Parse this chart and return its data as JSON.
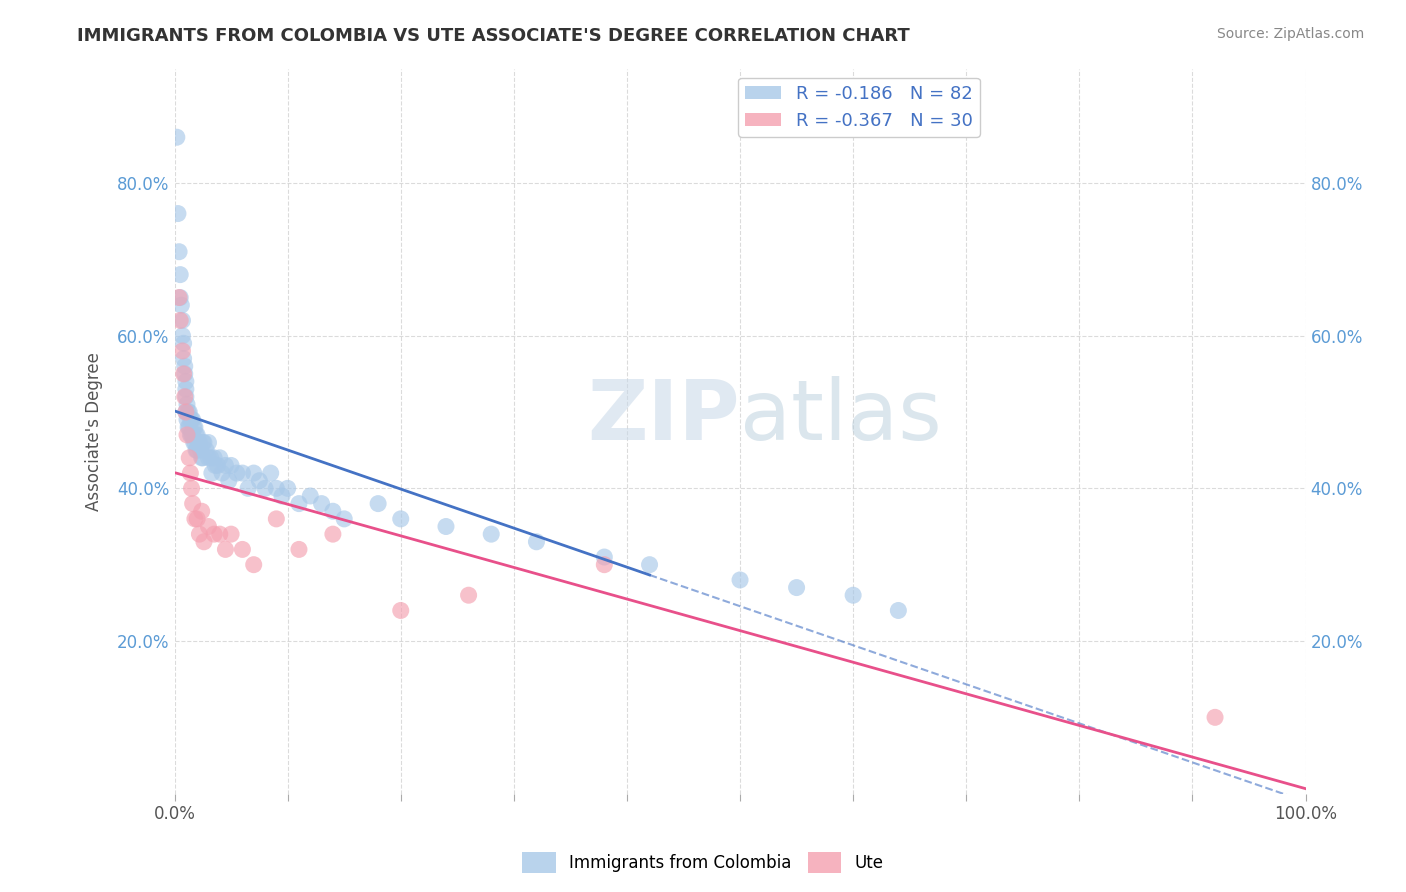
{
  "title": "IMMIGRANTS FROM COLOMBIA VS UTE ASSOCIATE'S DEGREE CORRELATION CHART",
  "source_text": "Source: ZipAtlas.com",
  "watermark_zip": "ZIP",
  "watermark_atlas": "atlas",
  "xlabel": "",
  "ylabel": "Associate's Degree",
  "legend_label_1": "Immigrants from Colombia",
  "legend_label_2": "Ute",
  "r1": -0.186,
  "n1": 82,
  "r2": -0.367,
  "n2": 30,
  "xlim": [
    0.0,
    1.0
  ],
  "ylim": [
    0.0,
    0.95
  ],
  "color1": "#a8c8e8",
  "color2": "#f4a0b0",
  "trendline1_color": "#4472c4",
  "trendline2_color": "#e8508a",
  "trendline1_end": 0.42,
  "background_color": "#ffffff",
  "grid_color": "#cccccc",
  "colombia_x": [
    0.002,
    0.003,
    0.004,
    0.005,
    0.005,
    0.006,
    0.007,
    0.007,
    0.008,
    0.008,
    0.009,
    0.009,
    0.01,
    0.01,
    0.01,
    0.01,
    0.011,
    0.011,
    0.012,
    0.012,
    0.013,
    0.013,
    0.014,
    0.014,
    0.015,
    0.015,
    0.016,
    0.016,
    0.017,
    0.017,
    0.018,
    0.018,
    0.019,
    0.019,
    0.02,
    0.02,
    0.021,
    0.022,
    0.023,
    0.024,
    0.025,
    0.025,
    0.026,
    0.028,
    0.03,
    0.03,
    0.032,
    0.033,
    0.035,
    0.036,
    0.038,
    0.04,
    0.042,
    0.045,
    0.048,
    0.05,
    0.055,
    0.06,
    0.065,
    0.07,
    0.075,
    0.08,
    0.085,
    0.09,
    0.095,
    0.1,
    0.11,
    0.12,
    0.13,
    0.14,
    0.15,
    0.18,
    0.2,
    0.24,
    0.28,
    0.32,
    0.38,
    0.42,
    0.5,
    0.55,
    0.6,
    0.64
  ],
  "colombia_y": [
    0.86,
    0.76,
    0.71,
    0.68,
    0.65,
    0.64,
    0.62,
    0.6,
    0.59,
    0.57,
    0.56,
    0.55,
    0.54,
    0.53,
    0.52,
    0.5,
    0.51,
    0.49,
    0.5,
    0.48,
    0.5,
    0.48,
    0.49,
    0.47,
    0.49,
    0.47,
    0.49,
    0.47,
    0.48,
    0.46,
    0.48,
    0.46,
    0.47,
    0.45,
    0.47,
    0.45,
    0.46,
    0.46,
    0.45,
    0.44,
    0.46,
    0.44,
    0.46,
    0.45,
    0.46,
    0.44,
    0.44,
    0.42,
    0.44,
    0.43,
    0.43,
    0.44,
    0.42,
    0.43,
    0.41,
    0.43,
    0.42,
    0.42,
    0.4,
    0.42,
    0.41,
    0.4,
    0.42,
    0.4,
    0.39,
    0.4,
    0.38,
    0.39,
    0.38,
    0.37,
    0.36,
    0.38,
    0.36,
    0.35,
    0.34,
    0.33,
    0.31,
    0.3,
    0.28,
    0.27,
    0.26,
    0.24
  ],
  "ute_x": [
    0.004,
    0.005,
    0.007,
    0.008,
    0.009,
    0.01,
    0.011,
    0.013,
    0.014,
    0.015,
    0.016,
    0.018,
    0.02,
    0.022,
    0.024,
    0.026,
    0.03,
    0.035,
    0.04,
    0.045,
    0.05,
    0.06,
    0.07,
    0.09,
    0.11,
    0.14,
    0.2,
    0.26,
    0.38,
    0.92
  ],
  "ute_y": [
    0.65,
    0.62,
    0.58,
    0.55,
    0.52,
    0.5,
    0.47,
    0.44,
    0.42,
    0.4,
    0.38,
    0.36,
    0.36,
    0.34,
    0.37,
    0.33,
    0.35,
    0.34,
    0.34,
    0.32,
    0.34,
    0.32,
    0.3,
    0.36,
    0.32,
    0.34,
    0.24,
    0.26,
    0.3,
    0.1
  ]
}
